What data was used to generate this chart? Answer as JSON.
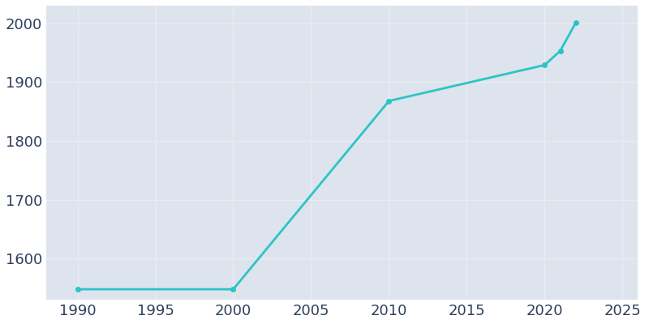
{
  "years": [
    1990,
    2000,
    2010,
    2020,
    2021,
    2022
  ],
  "population": [
    1548,
    1548,
    1868,
    1929,
    1953,
    2001
  ],
  "line_color": "#2DC4C4",
  "marker_color": "#2DC4C4",
  "axes_background_color": "#DDE4EE",
  "figure_background_color": "#FFFFFF",
  "grid_color": "#EAECF2",
  "xlim": [
    1988,
    2026
  ],
  "ylim": [
    1530,
    2030
  ],
  "xticks": [
    1990,
    1995,
    2000,
    2005,
    2010,
    2015,
    2020,
    2025
  ],
  "yticks": [
    1600,
    1700,
    1800,
    1900,
    2000
  ],
  "tick_label_color": "#2F3F5C",
  "tick_fontsize": 13,
  "line_width": 2.0,
  "marker_size": 4
}
